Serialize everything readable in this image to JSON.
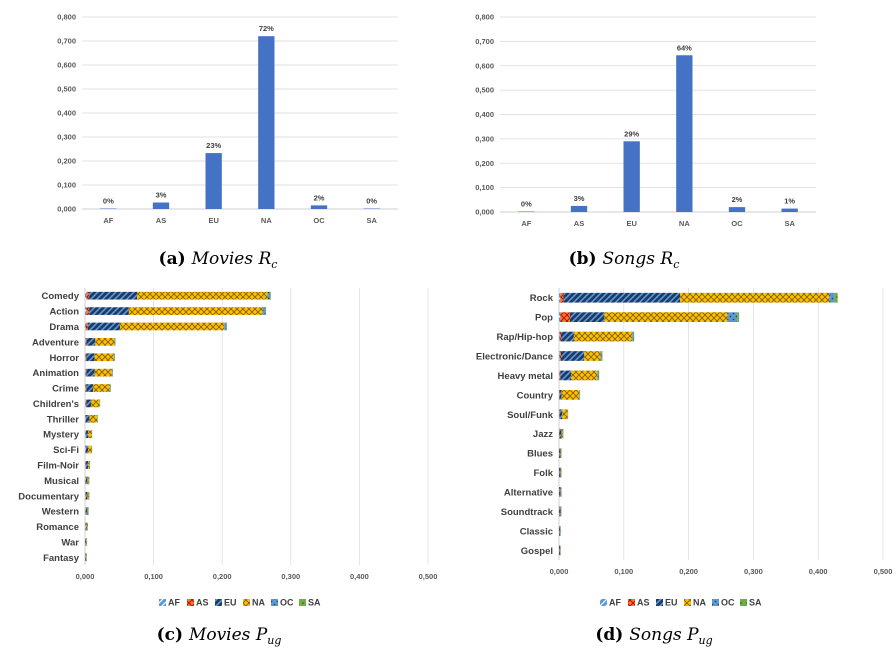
{
  "colors": {
    "bar": "#4472c4",
    "AF": "#5b9bd5",
    "AS": "#ed7d31",
    "EU": "#1f3864",
    "NA": "#ffc000",
    "OC": "#7f7f7f",
    "SA": "#70ad47",
    "grid": "#d9d9d9",
    "axis": "#bfbfbf"
  },
  "chart_data": [
    {
      "type": "bar",
      "caption": {
        "letter": "(a)",
        "word": "Movies",
        "symbol": "R",
        "subscript": "c"
      },
      "categories": [
        "AF",
        "AS",
        "EU",
        "NA",
        "OC",
        "SA"
      ],
      "values": [
        0.002,
        0.027,
        0.233,
        0.72,
        0.015,
        0.002
      ],
      "data_labels": [
        "0%",
        "3%",
        "23%",
        "72%",
        "2%",
        "0%"
      ],
      "yticks": [
        "0,000",
        "0,100",
        "0,200",
        "0,300",
        "0,400",
        "0,500",
        "0,600",
        "0,700",
        "0,800"
      ],
      "ylim": [
        0,
        0.8
      ]
    },
    {
      "type": "bar",
      "caption": {
        "letter": "(b)",
        "word": "Songs",
        "symbol": "R",
        "subscript": "c"
      },
      "categories": [
        "AF",
        "AS",
        "EU",
        "NA",
        "OC",
        "SA"
      ],
      "values": [
        0.002,
        0.025,
        0.29,
        0.643,
        0.02,
        0.014
      ],
      "data_labels": [
        "0%",
        "3%",
        "29%",
        "64%",
        "2%",
        "1%"
      ],
      "yticks": [
        "0,000",
        "0,100",
        "0,200",
        "0,300",
        "0,400",
        "0,500",
        "0,600",
        "0,700",
        "0,800"
      ],
      "ylim": [
        0,
        0.8
      ]
    },
    {
      "type": "bar",
      "orientation": "horizontal",
      "stacked": true,
      "caption": {
        "letter": "(c)",
        "word": "Movies",
        "symbol": "P",
        "subscript": "ug"
      },
      "categories": [
        "Comedy",
        "Action",
        "Drama",
        "Adventure",
        "Horror",
        "Animation",
        "Crime",
        "Children's",
        "Thriller",
        "Mystery",
        "Sci-Fi",
        "Film-Noir",
        "Musical",
        "Documentary",
        "Western",
        "Romance",
        "War",
        "Fantasy"
      ],
      "xticks": [
        "0,000",
        "0,100",
        "0,200",
        "0,300",
        "0,400",
        "0,500"
      ],
      "xlim": [
        0,
        0.5
      ],
      "legend": [
        "AF",
        "AS",
        "EU",
        "NA",
        "OC",
        "SA"
      ],
      "legend_position": "bottom",
      "series": [
        {
          "name": "AF",
          "values": [
            0.002,
            0.002,
            0.001,
            0.001,
            0.001,
            0.001,
            0.001,
            0.001,
            0.001,
            0.001,
            0.001,
            0.001,
            0.001,
            0.001,
            0.001,
            0.001,
            0.0005,
            0.0005
          ]
        },
        {
          "name": "AS",
          "values": [
            0.004,
            0.004,
            0.003,
            0.001,
            0.001,
            0.001,
            0.001,
            0.001,
            0.0005,
            0.0005,
            0.0005,
            0.0005,
            0.0005,
            0.0005,
            0.0005,
            0.0005,
            0.0003,
            0.0003
          ]
        },
        {
          "name": "EU",
          "values": [
            0.07,
            0.058,
            0.047,
            0.013,
            0.012,
            0.012,
            0.01,
            0.007,
            0.005,
            0.003,
            0.003,
            0.003,
            0.002,
            0.002,
            0.002,
            0.001,
            0.001,
            0.0005
          ]
        },
        {
          "name": "NA",
          "values": [
            0.19,
            0.195,
            0.152,
            0.028,
            0.028,
            0.025,
            0.024,
            0.012,
            0.011,
            0.005,
            0.005,
            0.002,
            0.002,
            0.002,
            0.001,
            0.001,
            0.0005,
            0.0005
          ]
        },
        {
          "name": "OC",
          "values": [
            0.004,
            0.004,
            0.003,
            0.001,
            0.001,
            0.001,
            0.001,
            0.0005,
            0.0005,
            0.0003,
            0.0003,
            0.0003,
            0.0002,
            0.0002,
            0.0002,
            0.0002,
            0.0001,
            0.0001
          ]
        },
        {
          "name": "SA",
          "values": [
            0.001,
            0.001,
            0.001,
            0.0005,
            0.0005,
            0.0005,
            0.0005,
            0.0003,
            0.0002,
            0.0002,
            0.0002,
            0.0002,
            0.0001,
            0.0001,
            0.0001,
            0.0001,
            0.0001,
            0.0001
          ]
        }
      ]
    },
    {
      "type": "bar",
      "orientation": "horizontal",
      "stacked": true,
      "caption": {
        "letter": "(d)",
        "word": "Songs",
        "symbol": "P",
        "subscript": "ug"
      },
      "categories": [
        "Rock",
        "Pop",
        "Rap/Hip-hop",
        "Electronic/Dance",
        "Heavy metal",
        "Country",
        "Soul/Funk",
        "Jazz",
        "Blues",
        "Folk",
        "Alternative",
        "Soundtrack",
        "Classic",
        "Gospel"
      ],
      "xticks": [
        "0,000",
        "0,100",
        "0,200",
        "0,300",
        "0,400",
        "0,500"
      ],
      "xlim": [
        0,
        0.5
      ],
      "legend": [
        "AF",
        "AS",
        "EU",
        "NA",
        "OC",
        "SA"
      ],
      "legend_position": "bottom",
      "series": [
        {
          "name": "AF",
          "values": [
            0.002,
            0.002,
            0.001,
            0.001,
            0.001,
            0.0005,
            0.0005,
            0.0005,
            0.0003,
            0.0003,
            0.0003,
            0.0003,
            0.0003,
            0.0003
          ]
        },
        {
          "name": "AS",
          "values": [
            0.005,
            0.015,
            0.002,
            0.002,
            0.001,
            0.0005,
            0.0005,
            0.0003,
            0.0002,
            0.0002,
            0.0002,
            0.0002,
            0.0002,
            0.0002
          ]
        },
        {
          "name": "EU",
          "values": [
            0.18,
            0.053,
            0.02,
            0.036,
            0.017,
            0.003,
            0.004,
            0.003,
            0.002,
            0.002,
            0.002,
            0.002,
            0.001,
            0.001
          ]
        },
        {
          "name": "NA",
          "values": [
            0.23,
            0.19,
            0.09,
            0.025,
            0.04,
            0.027,
            0.008,
            0.002,
            0.0005,
            0.0005,
            0.0005,
            0.0003,
            0.0003,
            0.0003
          ]
        },
        {
          "name": "OC",
          "values": [
            0.008,
            0.015,
            0.002,
            0.002,
            0.002,
            0.001,
            0.0005,
            0.0003,
            0.0002,
            0.0002,
            0.0002,
            0.0002,
            0.0002,
            0.0001
          ]
        },
        {
          "name": "SA",
          "values": [
            0.005,
            0.003,
            0.001,
            0.001,
            0.001,
            0.0005,
            0.0005,
            0.0002,
            0.0002,
            0.0002,
            0.0001,
            0.0001,
            0.0001,
            0.0001
          ]
        }
      ]
    }
  ]
}
